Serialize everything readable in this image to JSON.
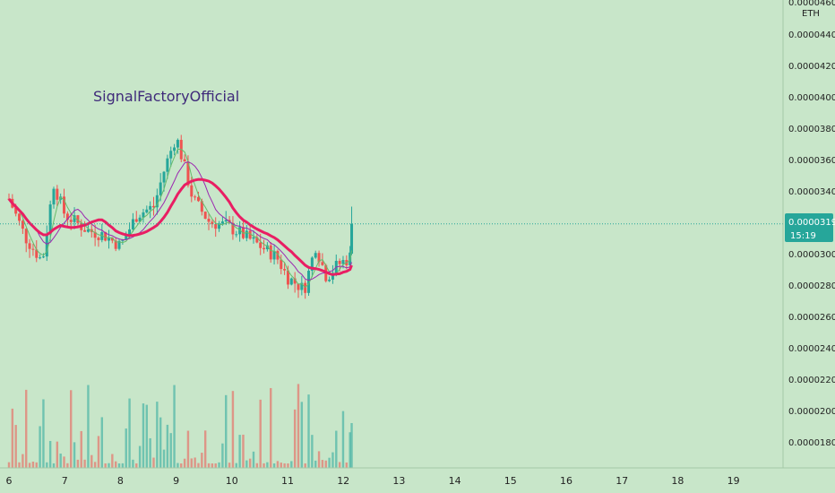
{
  "watermark": "SignalFactoryOfficial",
  "currency": "ETH",
  "top_tick_partial": "0.00004600",
  "last_price": {
    "value": 3.19e-05,
    "label": "0.00003190",
    "countdown": "15:19"
  },
  "colors": {
    "background": "#c8e6c9",
    "up": "#26a69a",
    "down": "#ef5350",
    "ma_fast": "#66bb6a",
    "ma_mid": "#9c27b0",
    "ma_slow": "#e91e63",
    "price_tag": "#26a69a",
    "watermark": "#3f2a7a"
  },
  "chart_data": {
    "type": "candlestick",
    "x_axis_labels": [
      "6",
      "7",
      "8",
      "9",
      "10",
      "11",
      "12",
      "13",
      "14",
      "15",
      "16",
      "17",
      "18",
      "19"
    ],
    "y_axis": {
      "unit": "ETH",
      "ticks": [
        "0.00004400",
        "0.00004200",
        "0.00004000",
        "0.00003800",
        "0.00003600",
        "0.00003400",
        "0.00003000",
        "0.00002800",
        "0.00002600",
        "0.00002400",
        "0.00002200",
        "0.00002000",
        "0.00001800"
      ],
      "range": [
        1.75e-05,
        4.63e-05
      ]
    },
    "price_path": [
      [
        6.0,
        3.35e-05
      ],
      [
        6.3,
        3.1e-05
      ],
      [
        6.6,
        2.95e-05
      ],
      [
        6.8,
        3.45e-05
      ],
      [
        7.0,
        3.25e-05
      ],
      [
        7.4,
        3.15e-05
      ],
      [
        7.7,
        3.12e-05
      ],
      [
        8.0,
        3.05e-05
      ],
      [
        8.3,
        3.25e-05
      ],
      [
        8.6,
        3.3e-05
      ],
      [
        8.8,
        3.55e-05
      ],
      [
        9.0,
        3.75e-05
      ],
      [
        9.15,
        3.55e-05
      ],
      [
        9.3,
        3.35e-05
      ],
      [
        9.6,
        3.2e-05
      ],
      [
        9.9,
        3.18e-05
      ],
      [
        10.2,
        3.12e-05
      ],
      [
        10.5,
        3.05e-05
      ],
      [
        10.8,
        2.98e-05
      ],
      [
        11.0,
        2.85e-05
      ],
      [
        11.3,
        2.77e-05
      ],
      [
        11.5,
        3.05e-05
      ],
      [
        11.7,
        2.85e-05
      ],
      [
        11.9,
        2.93e-05
      ],
      [
        12.1,
        2.97e-05
      ],
      [
        12.15,
        3e-05
      ]
    ],
    "last_candle": {
      "open": 3e-05,
      "high": 3.3e-05,
      "low": 2.99e-05,
      "close": 3.19e-05
    },
    "volume_range": [
      0,
      1
    ]
  }
}
